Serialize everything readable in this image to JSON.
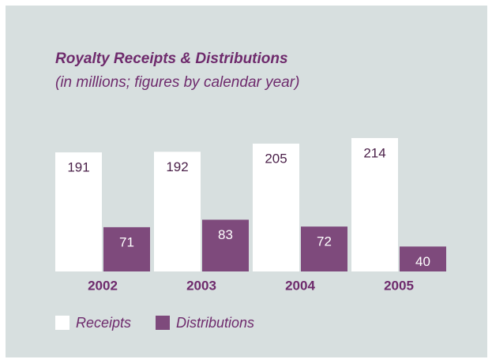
{
  "chart_data": {
    "type": "bar",
    "title": "Royalty Receipts & Distributions",
    "subtitle": "(in millions; figures by calendar year)",
    "categories": [
      "2002",
      "2003",
      "2004",
      "2005"
    ],
    "series": [
      {
        "name": "Receipts",
        "color": "#ffffff",
        "values": [
          191,
          192,
          205,
          214
        ]
      },
      {
        "name": "Distributions",
        "color": "#7e4a7c",
        "values": [
          71,
          83,
          72,
          40
        ]
      }
    ]
  }
}
